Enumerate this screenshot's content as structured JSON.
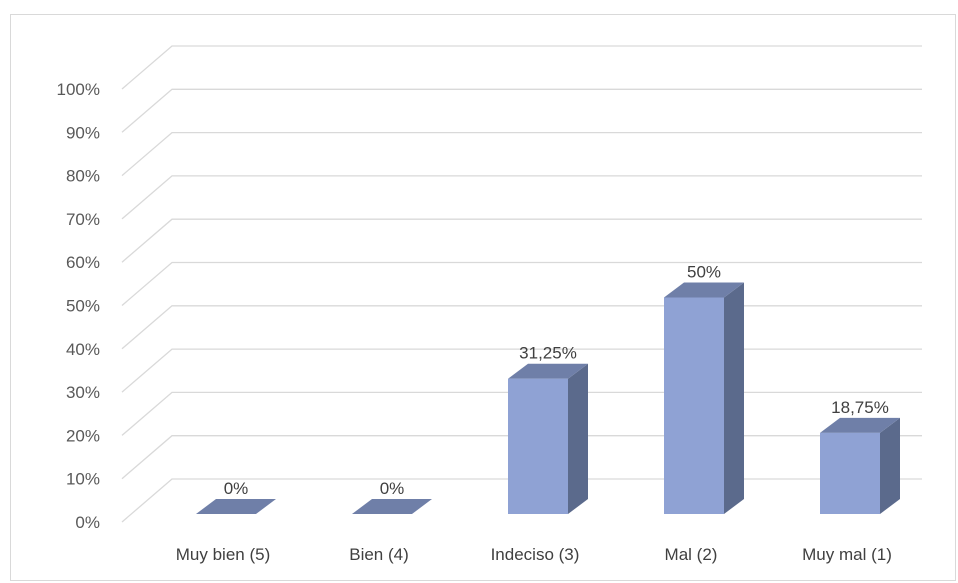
{
  "colors": {
    "bar_front": "#8FA2D4",
    "bar_side": "#5B6A8C",
    "bar_top": "#6F7FA8",
    "gridline": "#d9d9d9"
  },
  "chart_data": {
    "type": "bar",
    "title": "",
    "xlabel": "",
    "ylabel": "",
    "categories": [
      "Muy bien (5)",
      "Bien (4)",
      "Indeciso (3)",
      "Mal (2)",
      "Muy mal (1)"
    ],
    "values": [
      0,
      0,
      31.25,
      50,
      18.75
    ],
    "data_labels": [
      "0%",
      "0%",
      "31,25%",
      "50%",
      "18,75%"
    ],
    "ylim": [
      0,
      100
    ],
    "y_ticks": [
      "0%",
      "10%",
      "20%",
      "30%",
      "40%",
      "50%",
      "60%",
      "70%",
      "80%",
      "90%",
      "100%"
    ],
    "grid": true,
    "style": "3d-column",
    "legend": "none"
  }
}
